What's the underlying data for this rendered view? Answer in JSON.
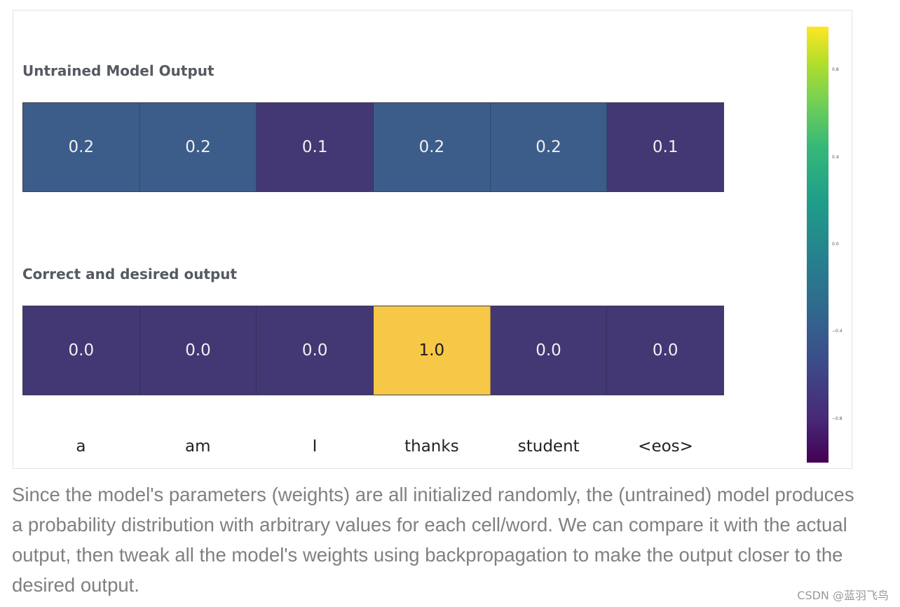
{
  "chart_data": {
    "type": "heatmap",
    "categories": [
      "a",
      "am",
      "I",
      "thanks",
      "student",
      "<eos>"
    ],
    "series": [
      {
        "name": "Untrained Model Output",
        "values": [
          0.2,
          0.2,
          0.1,
          0.2,
          0.2,
          0.1
        ],
        "labels": [
          "0.2",
          "0.2",
          "0.1",
          "0.2",
          "0.2",
          "0.1"
        ]
      },
      {
        "name": "Correct and desired output",
        "values": [
          0.0,
          0.0,
          0.0,
          1.0,
          0.0,
          0.0
        ],
        "labels": [
          "0.0",
          "0.0",
          "0.0",
          "1.0",
          "0.0",
          "0.0"
        ]
      }
    ],
    "colorbar": {
      "ticks": [
        "0.8",
        "0.4",
        "0.0",
        "−0.4",
        "−0.8"
      ],
      "tick_values": [
        0.8,
        0.4,
        0.0,
        -0.4,
        -0.8
      ],
      "range": [
        -1.0,
        1.0
      ]
    },
    "colors": {
      "low": "#433873",
      "mid": "#3c5d8a",
      "high": "#f7c747"
    }
  },
  "caption": "Since the model's parameters (weights) are all initialized randomly, the (untrained) model produces a probability distribution with arbitrary values for each cell/word. We can compare it with the actual output, then tweak all the model's weights using backpropagation to make the output closer to the desired output.",
  "watermark": "CSDN @蓝羽飞鸟"
}
